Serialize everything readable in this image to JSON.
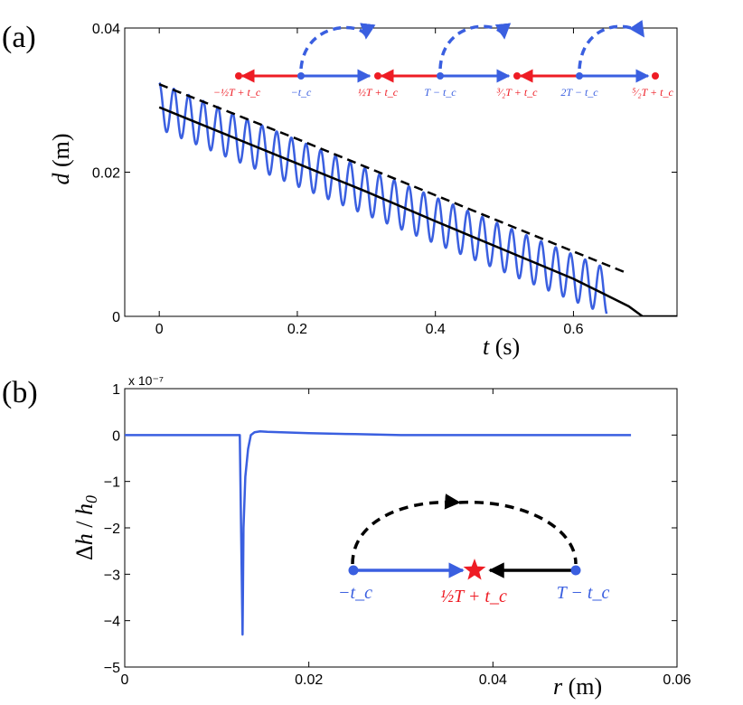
{
  "colors": {
    "blue": "#3a5fe0",
    "red": "#ee1c24",
    "black": "#000000"
  },
  "chart_data": [
    {
      "panel": "(a)",
      "type": "line",
      "title": "",
      "xlabel": "t (s)",
      "ylabel": "d (m)",
      "xlim": [
        -0.05,
        0.75
      ],
      "ylim": [
        0,
        0.04
      ],
      "xticks": [
        0,
        0.2,
        0.4,
        0.6
      ],
      "xtick_labels": [
        "0",
        "0.2",
        "0.4",
        "0.6"
      ],
      "yticks": [
        0,
        0.02,
        0.04
      ],
      "ytick_labels": [
        "0",
        "0.02",
        "0.04"
      ],
      "series": [
        {
          "name": "oscillating solution",
          "color": "#3a5fe0",
          "style": "solid",
          "kind": "damped-oscillation",
          "t_start": 0,
          "t_end": 0.648,
          "center_start": 0.0292,
          "center_end": 0.00345,
          "amplitude": 0.0032,
          "frequency_hz": 47,
          "phase_deg": 90
        },
        {
          "name": "mean trajectory",
          "color": "#000000",
          "style": "solid",
          "x": [
            0,
            0.1,
            0.2,
            0.3,
            0.4,
            0.5,
            0.6,
            0.64,
            0.68,
            0.7,
            0.75
          ],
          "y": [
            0.029,
            0.0251,
            0.0212,
            0.0173,
            0.0132,
            0.0092,
            0.0052,
            0.0033,
            0.0014,
            0.0,
            0.0
          ]
        },
        {
          "name": "upper envelope",
          "color": "#000000",
          "style": "dashed",
          "x": [
            0,
            0.1,
            0.2,
            0.3,
            0.4,
            0.5,
            0.6,
            0.675
          ],
          "y": [
            0.0322,
            0.0284,
            0.0246,
            0.0207,
            0.0168,
            0.0129,
            0.009,
            0.0061
          ]
        }
      ],
      "inset": {
        "points": [
          {
            "label": "−½T + t_c",
            "color": "#ee1c24"
          },
          {
            "label": "−t_c",
            "color": "#3a5fe0"
          },
          {
            "label": "½T + t_c",
            "color": "#ee1c24"
          },
          {
            "label": "T − t_c",
            "color": "#3a5fe0"
          },
          {
            "label": "³⁄₂T + t_c",
            "color": "#ee1c24"
          },
          {
            "label": "2T − t_c",
            "color": "#3a5fe0"
          },
          {
            "label": "⁵⁄₂T + t_c",
            "color": "#ee1c24"
          }
        ]
      }
    },
    {
      "panel": "(b)",
      "type": "line",
      "title": "",
      "xlabel": "r (m)",
      "ylabel": "Δh / h₀",
      "multiplier": "x 10⁻⁷",
      "xlim": [
        0,
        0.06
      ],
      "ylim": [
        -5,
        1
      ],
      "xticks": [
        0,
        0.02,
        0.04,
        0.06
      ],
      "xtick_labels": [
        "0",
        "0.02",
        "0.04",
        "0.06"
      ],
      "yticks": [
        1,
        0,
        -1,
        -2,
        -3,
        -4,
        -5
      ],
      "ytick_labels": [
        "1",
        "0",
        "−1",
        "−2",
        "−3",
        "−4",
        "−5"
      ],
      "series": [
        {
          "name": "height perturbation",
          "color": "#3a5fe0",
          "style": "solid",
          "x": [
            0,
            0.0125,
            0.0128,
            0.01285,
            0.0129,
            0.0131,
            0.0134,
            0.0137,
            0.0141,
            0.0147,
            0.0155,
            0.017,
            0.02,
            0.025,
            0.03,
            0.04,
            0.055
          ],
          "y": [
            0,
            0,
            -4.3,
            -3.2,
            -2.0,
            -0.9,
            -0.3,
            0.0,
            0.06,
            0.08,
            0.07,
            0.06,
            0.04,
            0.02,
            0.0,
            0.0,
            0.0
          ]
        }
      ],
      "inset": {
        "points": [
          {
            "label": "−t_c",
            "color": "#3a5fe0"
          },
          {
            "label": "½T + t_c",
            "color": "#ee1c24",
            "marker": "star"
          },
          {
            "label": "T − t_c",
            "color": "#3a5fe0"
          }
        ]
      }
    }
  ]
}
